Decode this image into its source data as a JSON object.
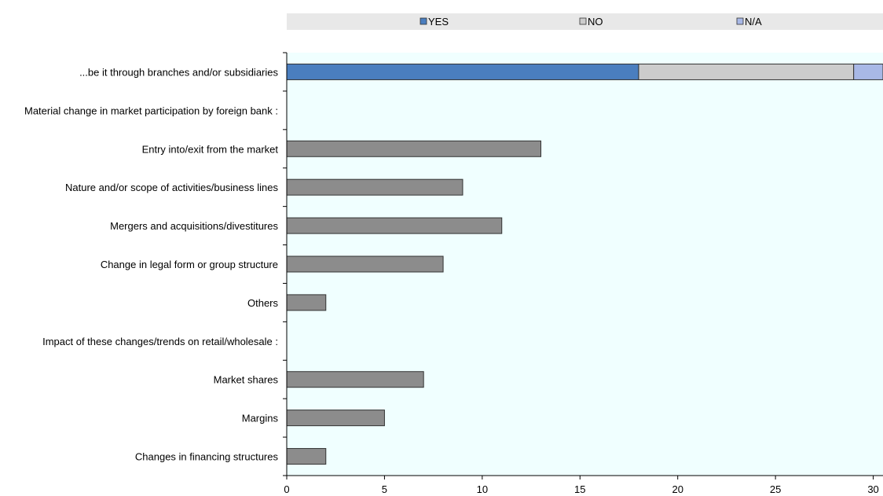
{
  "chart_data": {
    "type": "bar",
    "orientation": "horizontal",
    "stacked": true,
    "legend": {
      "placement": "top",
      "items": [
        {
          "name": "YES",
          "color": "#4a7ebf"
        },
        {
          "name": "NO",
          "color": "#cccccc"
        },
        {
          "name": "N/A",
          "color": "#a8b8e6"
        }
      ]
    },
    "categories": [
      "...be it through branches and/or subsidiaries",
      "Material change in market participation by foreign bank :",
      "Entry into/exit from the market",
      "Nature and/or scope of activities/business lines",
      "Mergers and acquisitions/divestitures",
      "Change in legal form or group structure",
      "Others",
      "Impact of these changes/trends on retail/wholesale :",
      "Market shares",
      "Margins",
      "Changes in financing structures"
    ],
    "stacked_bar": {
      "category_index": 0,
      "segments": [
        {
          "series": "YES",
          "value": 18
        },
        {
          "series": "NO",
          "value": 11
        },
        {
          "series": "N/A",
          "value": 2
        }
      ]
    },
    "single_bars": {
      "color": "#8c8c8c",
      "values": [
        null,
        null,
        13,
        9,
        11,
        8,
        2,
        null,
        7,
        5,
        2
      ]
    },
    "xlim": [
      0,
      30.5
    ],
    "xticks": [
      0,
      5,
      10,
      15,
      20,
      25,
      30
    ],
    "plot_background": "#f0ffff",
    "legend_background": "#e8e8e8",
    "grid": false
  }
}
